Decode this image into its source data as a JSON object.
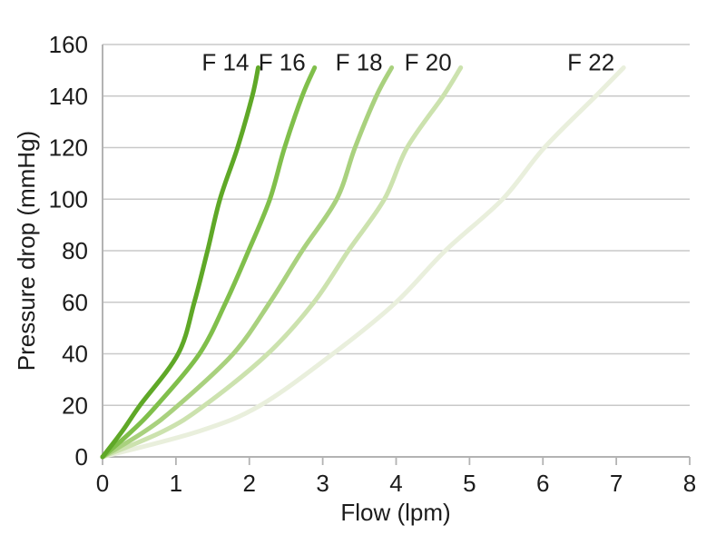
{
  "figure": {
    "background": "#ffffff"
  },
  "chart_data": {
    "type": "line",
    "title": "",
    "xlabel": "Flow (lpm)",
    "ylabel": "Pressure drop (mmHg)",
    "xlim": [
      0,
      8
    ],
    "ylim": [
      0,
      160
    ],
    "xticks": [
      0,
      1,
      2,
      3,
      4,
      5,
      6,
      7,
      8
    ],
    "yticks": [
      0,
      20,
      40,
      60,
      80,
      100,
      120,
      140,
      160
    ],
    "grid": "horizontal",
    "legend": "inline labels at top of each curve",
    "grid_color": "#c9c9c9",
    "axis_color": "#b3b3b3",
    "text_color": "#1c1c1c",
    "line_width": 5,
    "series": [
      {
        "name": "F 14",
        "color": "#5fa827",
        "points": [
          [
            0,
            0
          ],
          [
            0.27,
            10
          ],
          [
            0.51,
            20
          ],
          [
            1.03,
            40
          ],
          [
            1.25,
            60
          ],
          [
            1.43,
            80
          ],
          [
            1.6,
            100
          ],
          [
            1.84,
            120
          ],
          [
            2.04,
            140
          ],
          [
            2.12,
            151
          ]
        ]
      },
      {
        "name": "F 16",
        "color": "#80bf4b",
        "points": [
          [
            0,
            0
          ],
          [
            0.4,
            10
          ],
          [
            0.74,
            20
          ],
          [
            1.32,
            40
          ],
          [
            1.68,
            60
          ],
          [
            1.99,
            80
          ],
          [
            2.28,
            100
          ],
          [
            2.48,
            120
          ],
          [
            2.72,
            140
          ],
          [
            2.89,
            151
          ]
        ]
      },
      {
        "name": "F 18",
        "color": "#a9d17e",
        "points": [
          [
            0,
            0
          ],
          [
            0.58,
            10
          ],
          [
            1.03,
            20
          ],
          [
            1.78,
            40
          ],
          [
            2.28,
            60
          ],
          [
            2.72,
            80
          ],
          [
            3.19,
            100
          ],
          [
            3.44,
            120
          ],
          [
            3.73,
            140
          ],
          [
            3.94,
            151
          ]
        ]
      },
      {
        "name": "F 20",
        "color": "#cce2ae",
        "points": [
          [
            0,
            0
          ],
          [
            0.83,
            10
          ],
          [
            1.39,
            20
          ],
          [
            2.25,
            40
          ],
          [
            2.88,
            60
          ],
          [
            3.35,
            80
          ],
          [
            3.84,
            100
          ],
          [
            4.15,
            120
          ],
          [
            4.64,
            140
          ],
          [
            4.88,
            151
          ]
        ]
      },
      {
        "name": "F 22",
        "color": "#e9efdc",
        "points": [
          [
            0,
            0
          ],
          [
            1.32,
            10
          ],
          [
            2.15,
            20
          ],
          [
            3.14,
            40
          ],
          [
            4.0,
            60
          ],
          [
            4.67,
            80
          ],
          [
            5.45,
            100
          ],
          [
            6.02,
            120
          ],
          [
            6.72,
            140
          ],
          [
            7.1,
            151
          ]
        ]
      }
    ]
  }
}
